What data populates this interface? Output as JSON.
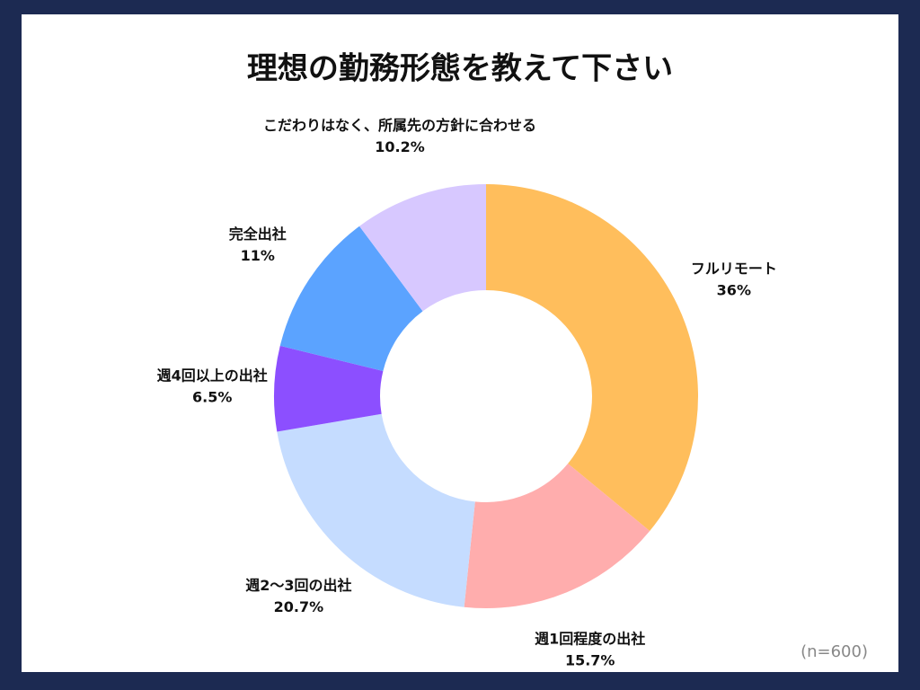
{
  "chart_data": {
    "type": "donut",
    "title": "理想の勤務形態を教えて下さい",
    "categories": [
      "フルリモート",
      "週1回程度の出社",
      "週2〜3回の出社",
      "週4回以上の出社",
      "完全出社",
      "こだわりはなく、所属先の方針に合わせる"
    ],
    "values": [
      36,
      15.7,
      20.7,
      6.5,
      11,
      10.2
    ],
    "value_labels": [
      "36%",
      "15.7%",
      "20.7%",
      "6.5%",
      "11%",
      "10.2%"
    ],
    "colors": [
      "#ffbe5c",
      "#ffadad",
      "#c5dcff",
      "#8c4fff",
      "#5ba3ff",
      "#d7c8ff"
    ],
    "note": "(n=600)"
  }
}
